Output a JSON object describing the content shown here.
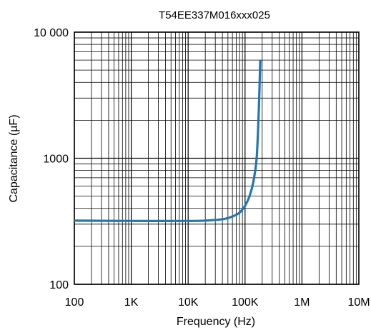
{
  "chart_data": {
    "type": "line",
    "title": "T54EE337M016xxx025",
    "xlabel": "Frequency (Hz)",
    "ylabel": "Capacitance (µF)",
    "xscale": "log",
    "yscale": "log",
    "xlim": [
      100,
      10000000
    ],
    "ylim": [
      100,
      10000
    ],
    "grid": true,
    "x_ticks": [
      {
        "value": 100,
        "label": "100"
      },
      {
        "value": 1000,
        "label": "1K"
      },
      {
        "value": 10000,
        "label": "10K"
      },
      {
        "value": 100000,
        "label": "100K"
      },
      {
        "value": 1000000,
        "label": "1M"
      },
      {
        "value": 10000000,
        "label": "10M"
      }
    ],
    "y_ticks": [
      {
        "value": 100,
        "label": "100"
      },
      {
        "value": 1000,
        "label": "1000"
      },
      {
        "value": 10000,
        "label": "10 000"
      }
    ],
    "series": [
      {
        "color": "#1f77b4",
        "x": [
          100,
          1000,
          10000,
          20000,
          40000,
          60000,
          80000,
          100000,
          120000,
          140000,
          160000,
          175000,
          185000
        ],
        "y": [
          320,
          318,
          318,
          320,
          328,
          345,
          370,
          420,
          500,
          650,
          1000,
          2500,
          6000
        ]
      }
    ]
  }
}
